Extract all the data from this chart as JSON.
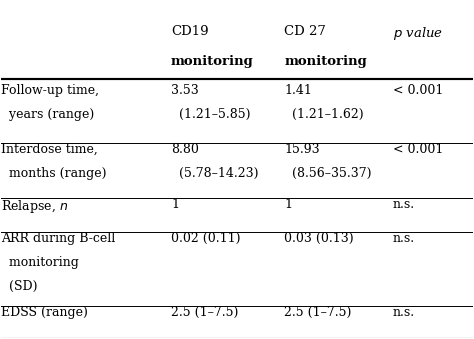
{
  "col_headers": [
    [
      "CD19",
      "monitoring"
    ],
    [
      "CD 27",
      "monitoring"
    ],
    [
      "p value",
      ""
    ]
  ],
  "rows": [
    {
      "label": [
        "Follow-up time,",
        "  years (range)"
      ],
      "cd19": [
        "3.53",
        "(1.21–5.85)"
      ],
      "cd27": [
        "1.41",
        "(1.21–1.62)"
      ],
      "pval": [
        "< 0.001",
        ""
      ]
    },
    {
      "label": [
        "Interdose time,",
        "  months (range)"
      ],
      "cd19": [
        "8.80",
        "(5.78–14.23)"
      ],
      "cd27": [
        "15.93",
        "(8.56–35.37)"
      ],
      "pval": [
        "< 0.001",
        ""
      ]
    },
    {
      "label": [
        "Relapse, ℹ",
        ""
      ],
      "cd19": [
        "1",
        ""
      ],
      "cd27": [
        "1",
        ""
      ],
      "pval": [
        "n.s.",
        ""
      ]
    },
    {
      "label": [
        "ARR during B-cell",
        "  monitoring\n  (SD)"
      ],
      "cd19": [
        "0.02 (0.11)",
        ""
      ],
      "cd27": [
        "0.03 (0.13)",
        ""
      ],
      "pval": [
        "n.s.",
        ""
      ]
    },
    {
      "label": [
        "EDSS (range)",
        ""
      ],
      "cd19": [
        "2.5 (1–7.5)",
        ""
      ],
      "cd27": [
        "2.5 (1–7.5)",
        ""
      ],
      "pval": [
        "n.s.",
        ""
      ]
    }
  ],
  "bg_color": "#ffffff",
  "text_color": "#000000",
  "font_size": 9,
  "header_font_size": 9.5
}
